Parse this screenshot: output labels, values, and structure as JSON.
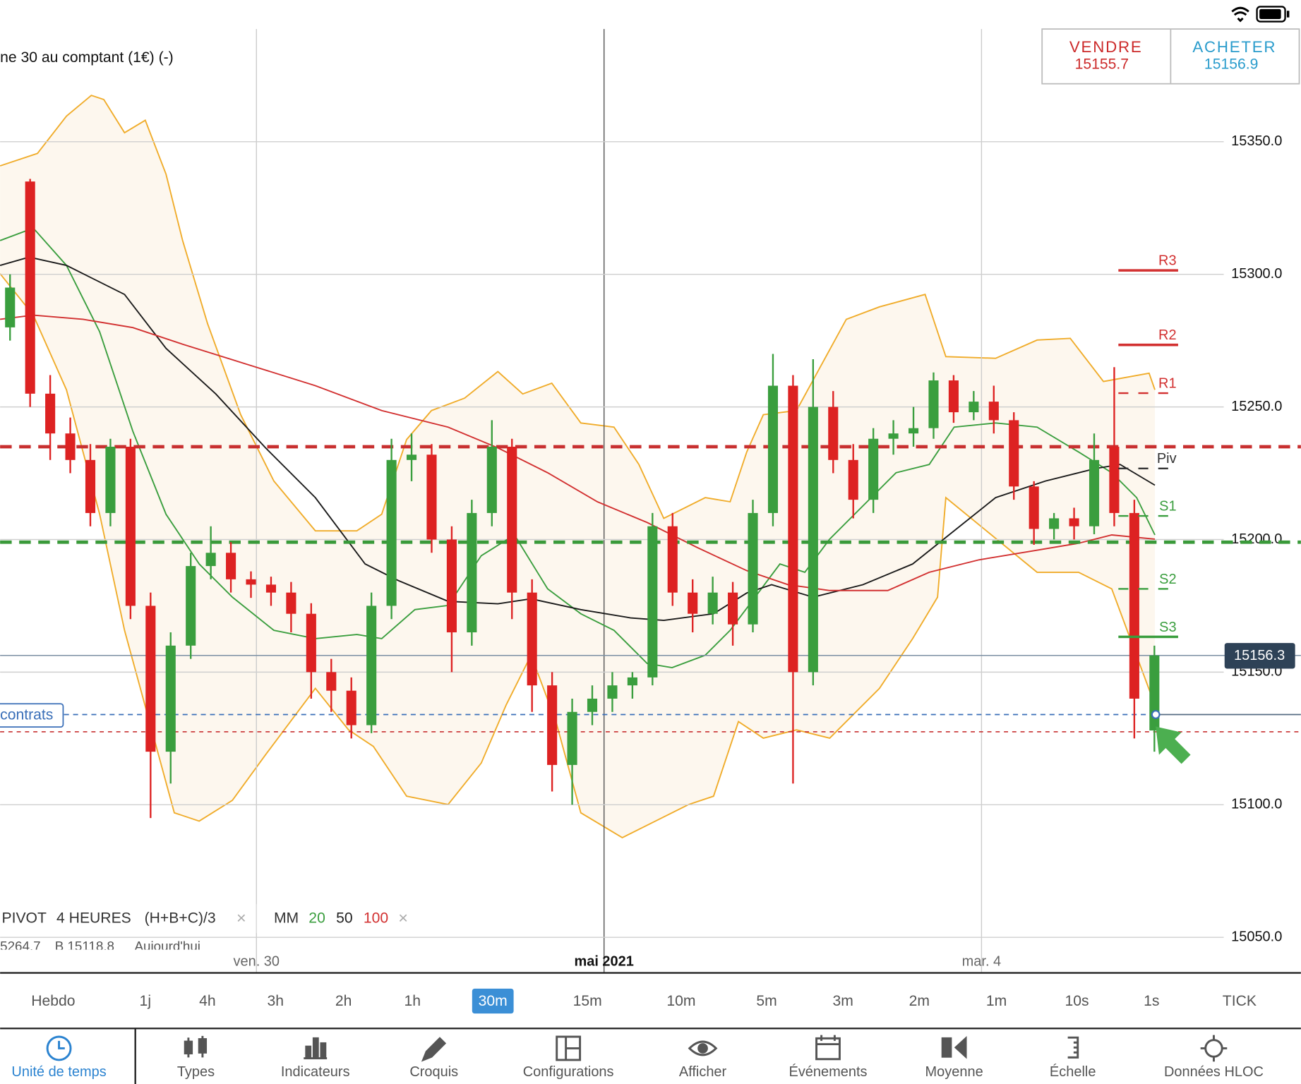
{
  "header": {
    "instrument": "ne 30 au comptant (1€) (-)",
    "sell": {
      "label": "VENDRE",
      "price": 15155.7
    },
    "buy": {
      "label": "ACHETER",
      "price": 15156.9
    }
  },
  "chart_data": {
    "type": "candlestick",
    "candles": [
      [
        15280,
        15300,
        15275,
        15295
      ],
      [
        15335,
        15336,
        15250,
        15255
      ],
      [
        15255,
        15262,
        15230,
        15240
      ],
      [
        15240,
        15246,
        15225,
        15230
      ],
      [
        15230,
        15236,
        15205,
        15210
      ],
      [
        15210,
        15238,
        15205,
        15235
      ],
      [
        15235,
        15238,
        15170,
        15175
      ],
      [
        15175,
        15180,
        15095,
        15120
      ],
      [
        15120,
        15165,
        15108,
        15160
      ],
      [
        15160,
        15195,
        15155,
        15190
      ],
      [
        15190,
        15205,
        15185,
        15195
      ],
      [
        15195,
        15199,
        15180,
        15185
      ],
      [
        15185,
        15188,
        15178,
        15183
      ],
      [
        15183,
        15186,
        15175,
        15180
      ],
      [
        15180,
        15184,
        15165,
        15172
      ],
      [
        15172,
        15176,
        15140,
        15150
      ],
      [
        15150,
        15155,
        15135,
        15143
      ],
      [
        15143,
        15148,
        15125,
        15130
      ],
      [
        15130,
        15180,
        15127,
        15175
      ],
      [
        15175,
        15238,
        15170,
        15230
      ],
      [
        15230,
        15240,
        15222,
        15232
      ],
      [
        15232,
        15236,
        15195,
        15200
      ],
      [
        15200,
        15205,
        15150,
        15165
      ],
      [
        15165,
        15215,
        15160,
        15210
      ],
      [
        15210,
        15245,
        15205,
        15235
      ],
      [
        15235,
        15238,
        15170,
        15180
      ],
      [
        15180,
        15185,
        15135,
        15145
      ],
      [
        15145,
        15150,
        15105,
        15115
      ],
      [
        15115,
        15140,
        15100,
        15135
      ],
      [
        15135,
        15145,
        15130,
        15140
      ],
      [
        15140,
        15150,
        15135,
        15145
      ],
      [
        15145,
        15150,
        15140,
        15148
      ],
      [
        15148,
        15210,
        15145,
        15205
      ],
      [
        15205,
        15210,
        15175,
        15180
      ],
      [
        15180,
        15185,
        15165,
        15172
      ],
      [
        15172,
        15186,
        15168,
        15180
      ],
      [
        15180,
        15184,
        15160,
        15168
      ],
      [
        15168,
        15215,
        15165,
        15210
      ],
      [
        15210,
        15270,
        15205,
        15258
      ],
      [
        15258,
        15262,
        15108,
        15150
      ],
      [
        15150,
        15268,
        15145,
        15250
      ],
      [
        15250,
        15256,
        15225,
        15230
      ],
      [
        15230,
        15236,
        15208,
        15215
      ],
      [
        15215,
        15242,
        15210,
        15238
      ],
      [
        15238,
        15245,
        15232,
        15240
      ],
      [
        15240,
        15250,
        15235,
        15242
      ],
      [
        15242,
        15263,
        15238,
        15260
      ],
      [
        15260,
        15262,
        15244,
        15248
      ],
      [
        15248,
        15256,
        15245,
        15252
      ],
      [
        15252,
        15258,
        15240,
        15245
      ],
      [
        15245,
        15248,
        15215,
        15220
      ],
      [
        15220,
        15222,
        15198,
        15204
      ],
      [
        15204,
        15210,
        15200,
        15208
      ],
      [
        15208,
        15212,
        15200,
        15205
      ],
      [
        15205,
        15240,
        15202,
        15230
      ],
      [
        15235,
        15265,
        15205,
        15210
      ],
      [
        15210,
        15215,
        15125,
        15140
      ],
      [
        15128,
        15160,
        15120,
        15156.3
      ]
    ],
    "ylim": [
      15036.6,
      15392.5
    ],
    "yticks": [
      {
        "value": 15350,
        "label": "15350.0"
      },
      {
        "value": 15300,
        "label": "15300.0"
      },
      {
        "value": 15250,
        "label": "15250.0"
      },
      {
        "value": 15200,
        "label": "15200.0"
      },
      {
        "value": 15150,
        "label": "15150.0"
      },
      {
        "value": 15100,
        "label": "15100.0"
      },
      {
        "value": 15050,
        "label": "15050.0"
      }
    ],
    "xlabels": [
      "ven. 30",
      "mai 2021",
      "mar. 4"
    ],
    "up_color": "#3a9e3e",
    "down_color": "#dd2222",
    "pivots": [
      {
        "label": "R3",
        "value": 15301.5,
        "color": "#d23030"
      },
      {
        "label": "R2",
        "value": 15273.4,
        "color": "#d23030"
      },
      {
        "label": "R1",
        "value": 15255.2,
        "color": "#d23030"
      },
      {
        "label": "Piv",
        "value": 15226.8,
        "color": "#333333"
      },
      {
        "label": "S1",
        "value": 15208.9,
        "color": "#3a9e3e"
      },
      {
        "label": "S2",
        "value": 15181.4,
        "color": "#3a9e3e"
      },
      {
        "label": "S3",
        "value": 15163.3,
        "color": "#3a9e3e"
      }
    ],
    "levels": [
      {
        "value": 15235,
        "color": "#c83030"
      },
      {
        "value": 15199,
        "color": "#3a9a3a"
      }
    ],
    "current_price": 15156.3,
    "position": {
      "label": "contrats",
      "value": 15134
    },
    "stop": 15127.5
  },
  "legend": {
    "pivot": "PIVOT",
    "period": "4 HEURES",
    "formula": "(H+B+C)/3",
    "close": "×",
    "mm": "MM",
    "mm_periods": [
      {
        "text": "20",
        "color": "#3a9e3e"
      },
      {
        "text": "50",
        "color": "#222"
      },
      {
        "text": "100",
        "color": "#d23030"
      }
    ],
    "close2": "×",
    "cut": [
      "5264.7",
      "B 15118.8",
      "Aujourd'hui"
    ]
  },
  "timeframes": {
    "items": [
      "Hebdo",
      "1j",
      "4h",
      "3h",
      "2h",
      "1h",
      "30m",
      "15m",
      "10m",
      "5m",
      "3m",
      "2m",
      "1m",
      "10s",
      "1s",
      "TICK"
    ],
    "selected": 6
  },
  "toolbar": {
    "items": [
      "Unité de temps",
      "Types",
      "Indicateurs",
      "Croquis",
      "Configurations",
      "Afficher",
      "Événements",
      "Moyenne",
      "Échelle",
      "Données HLOC"
    ],
    "selected": 0
  }
}
